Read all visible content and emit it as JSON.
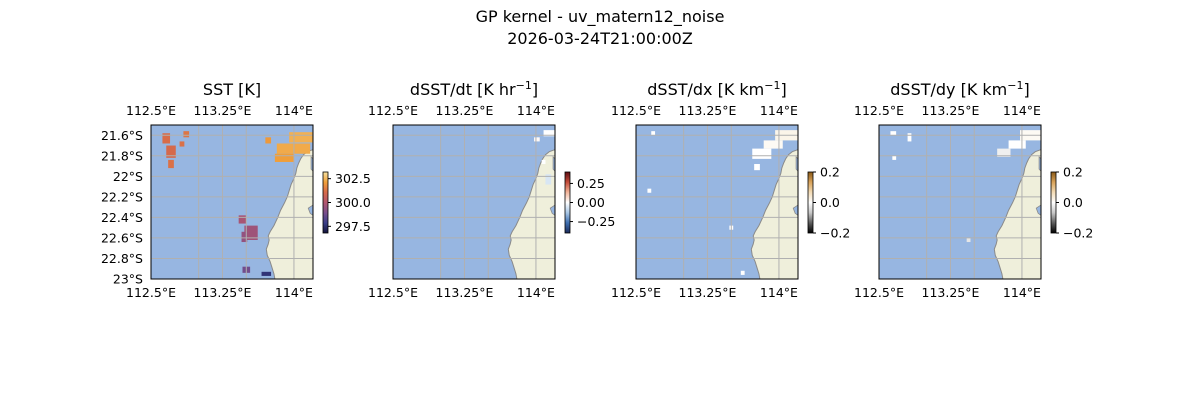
{
  "figure": {
    "title": "GP kernel - uv_matern12_noise",
    "timestamp": "2026-03-24T21:00:00Z"
  },
  "colors": {
    "ocean": "#97b6e1",
    "land": "#efefdb",
    "coast": "#8a8a8a",
    "grid": "#b0b0b0"
  },
  "map": {
    "lon_range": [
      112.5,
      114.2
    ],
    "lat_range": [
      -23.0,
      -21.5
    ],
    "lon_ticks": [
      {
        "value": 112.5,
        "label": "112.5°E"
      },
      {
        "value": 113.25,
        "label": "113.25°E"
      },
      {
        "value": 114.0,
        "label": "114°E"
      }
    ],
    "lat_ticks": [
      {
        "value": -21.6,
        "label": "21.6°S"
      },
      {
        "value": -21.8,
        "label": "21.8°S"
      },
      {
        "value": -22.0,
        "label": "22°S"
      },
      {
        "value": -22.2,
        "label": "22.2°S"
      },
      {
        "value": -22.4,
        "label": "22.4°S"
      },
      {
        "value": -22.6,
        "label": "22.6°S"
      },
      {
        "value": -22.8,
        "label": "22.8°S"
      },
      {
        "value": -23.0,
        "label": "23°S"
      }
    ],
    "coastline": [
      [
        114.2,
        -21.74
      ],
      [
        114.14,
        -21.76
      ],
      [
        114.1,
        -21.79
      ],
      [
        114.07,
        -21.83
      ],
      [
        114.05,
        -21.87
      ],
      [
        114.03,
        -21.92
      ],
      [
        114.02,
        -21.97
      ],
      [
        114.0,
        -22.02
      ],
      [
        113.97,
        -22.08
      ],
      [
        113.95,
        -22.14
      ],
      [
        113.93,
        -22.2
      ],
      [
        113.9,
        -22.26
      ],
      [
        113.86,
        -22.33
      ],
      [
        113.83,
        -22.4
      ],
      [
        113.79,
        -22.48
      ],
      [
        113.75,
        -22.54
      ],
      [
        113.73,
        -22.58
      ],
      [
        113.74,
        -22.62
      ],
      [
        113.73,
        -22.66
      ],
      [
        113.71,
        -22.71
      ],
      [
        113.72,
        -22.77
      ],
      [
        113.75,
        -22.83
      ],
      [
        113.77,
        -22.89
      ],
      [
        113.79,
        -22.95
      ],
      [
        113.8,
        -23.0
      ]
    ],
    "islands": [
      [
        [
          114.18,
          -21.81
        ],
        [
          114.2,
          -21.83
        ],
        [
          114.2,
          -21.95
        ],
        [
          114.18,
          -21.93
        ]
      ],
      [
        [
          114.2,
          -22.28
        ],
        [
          114.15,
          -22.31
        ],
        [
          114.17,
          -22.36
        ],
        [
          114.2,
          -22.38
        ]
      ]
    ]
  },
  "panels": [
    {
      "id": "sst",
      "title": "SST [K]",
      "title_main": "SST [K]",
      "title_sup": "",
      "show_lat_labels": true,
      "show_lon_labels": true,
      "colorbar": {
        "min": 296.8,
        "max": 303.2,
        "colors": [
          "#13143a",
          "#3b3f8a",
          "#7a4f8c",
          "#b3566e",
          "#d76a4a",
          "#f0a03a",
          "#f6e1a0"
        ],
        "ticks": [
          {
            "value": 297.5,
            "label": "297.5"
          },
          {
            "value": 300.0,
            "label": "300.0"
          },
          {
            "value": 302.5,
            "label": "302.5"
          }
        ]
      },
      "blocks": [
        {
          "lon": 112.62,
          "lat": -21.58,
          "w": 0.08,
          "h": 0.1,
          "value": 301.1
        },
        {
          "lon": 112.66,
          "lat": -21.7,
          "w": 0.1,
          "h": 0.12,
          "value": 301.0
        },
        {
          "lon": 112.68,
          "lat": -21.84,
          "w": 0.06,
          "h": 0.08,
          "value": 301.2
        },
        {
          "lon": 112.84,
          "lat": -21.56,
          "w": 0.06,
          "h": 0.06,
          "value": 301.3
        },
        {
          "lon": 112.8,
          "lat": -21.66,
          "w": 0.05,
          "h": 0.05,
          "value": 301.2
        },
        {
          "lon": 113.95,
          "lat": -21.57,
          "w": 0.25,
          "h": 0.1,
          "value": 302.4
        },
        {
          "lon": 113.82,
          "lat": -21.68,
          "w": 0.35,
          "h": 0.1,
          "value": 302.3
        },
        {
          "lon": 113.8,
          "lat": -21.78,
          "w": 0.2,
          "h": 0.08,
          "value": 302.1
        },
        {
          "lon": 113.7,
          "lat": -21.62,
          "w": 0.06,
          "h": 0.06,
          "value": 302.0
        },
        {
          "lon": 113.42,
          "lat": -22.38,
          "w": 0.08,
          "h": 0.08,
          "value": 299.8
        },
        {
          "lon": 113.48,
          "lat": -22.48,
          "w": 0.14,
          "h": 0.14,
          "value": 299.6
        },
        {
          "lon": 113.45,
          "lat": -22.54,
          "w": 0.06,
          "h": 0.1,
          "value": 299.4
        },
        {
          "lon": 113.46,
          "lat": -22.88,
          "w": 0.08,
          "h": 0.06,
          "value": 298.8
        },
        {
          "lon": 113.66,
          "lat": -22.93,
          "w": 0.1,
          "h": 0.04,
          "value": 297.6
        }
      ]
    },
    {
      "id": "dsst-dt",
      "title": "dSST/dt [K hr⁻¹]",
      "title_main": "dSST/dt [K hr",
      "title_sup": "−1",
      "title_end": "]",
      "show_lat_labels": false,
      "show_lon_labels": true,
      "colorbar": {
        "min": -0.4,
        "max": 0.4,
        "colors": [
          "#1b2a5a",
          "#3e6fb0",
          "#a9c7e6",
          "#ffffff",
          "#f2b59a",
          "#c44c3a",
          "#5e0d12"
        ],
        "ticks": [
          {
            "value": -0.25,
            "label": "−0.25"
          },
          {
            "value": 0.0,
            "label": "0.00"
          },
          {
            "value": 0.25,
            "label": "0.25"
          }
        ]
      },
      "blocks": [
        {
          "lon": 114.08,
          "lat": -21.55,
          "w": 0.12,
          "h": 0.06,
          "value": 0.0
        },
        {
          "lon": 113.98,
          "lat": -21.62,
          "w": 0.06,
          "h": 0.04,
          "value": 0.01
        },
        {
          "lon": 114.1,
          "lat": -21.98,
          "w": 0.06,
          "h": 0.1,
          "value": -0.06
        },
        {
          "lon": 114.06,
          "lat": -21.84,
          "w": 0.04,
          "h": 0.04,
          "value": 0.0
        }
      ]
    },
    {
      "id": "dsst-dx",
      "title": "dSST/dx [K km⁻¹]",
      "title_main": "dSST/dx [K km",
      "title_sup": "−1",
      "title_end": "]",
      "show_lat_labels": false,
      "show_lon_labels": true,
      "colorbar": {
        "min": -0.2,
        "max": 0.2,
        "colors": [
          "#000000",
          "#5e5e5e",
          "#c8c8c8",
          "#ffffff",
          "#f3dcb6",
          "#d9a35a",
          "#8a5a18"
        ],
        "ticks": [
          {
            "value": -0.2,
            "label": "−0.2"
          },
          {
            "value": 0.0,
            "label": "0.0"
          },
          {
            "value": 0.2,
            "label": "0.2"
          }
        ]
      },
      "blocks": [
        {
          "lon": 113.96,
          "lat": -21.55,
          "w": 0.24,
          "h": 0.1,
          "value": 0.02
        },
        {
          "lon": 113.84,
          "lat": -21.65,
          "w": 0.2,
          "h": 0.08,
          "value": 0.01
        },
        {
          "lon": 113.72,
          "lat": -21.73,
          "w": 0.2,
          "h": 0.1,
          "value": 0.0
        },
        {
          "lon": 113.74,
          "lat": -21.88,
          "w": 0.06,
          "h": 0.06,
          "value": 0.0
        },
        {
          "lon": 112.66,
          "lat": -21.56,
          "w": 0.04,
          "h": 0.04,
          "value": 0.0
        },
        {
          "lon": 112.62,
          "lat": -22.12,
          "w": 0.04,
          "h": 0.04,
          "value": 0.0
        },
        {
          "lon": 113.48,
          "lat": -22.48,
          "w": 0.04,
          "h": 0.04,
          "value": 0.0
        },
        {
          "lon": 113.6,
          "lat": -22.92,
          "w": 0.04,
          "h": 0.04,
          "value": 0.0
        }
      ]
    },
    {
      "id": "dsst-dy",
      "title": "dSST/dy [K km⁻¹]",
      "title_main": "dSST/dy [K km",
      "title_sup": "−1",
      "title_end": "]",
      "show_lat_labels": false,
      "show_lon_labels": true,
      "colorbar": {
        "min": -0.2,
        "max": 0.2,
        "colors": [
          "#000000",
          "#5e5e5e",
          "#c8c8c8",
          "#ffffff",
          "#f3dcb6",
          "#d9a35a",
          "#8a5a18"
        ],
        "ticks": [
          {
            "value": -0.2,
            "label": "−0.2"
          },
          {
            "value": 0.0,
            "label": "0.0"
          },
          {
            "value": 0.2,
            "label": "0.2"
          }
        ]
      },
      "blocks": [
        {
          "lon": 113.98,
          "lat": -21.55,
          "w": 0.22,
          "h": 0.1,
          "value": 0.01
        },
        {
          "lon": 113.86,
          "lat": -21.65,
          "w": 0.18,
          "h": 0.08,
          "value": 0.0
        },
        {
          "lon": 113.74,
          "lat": -21.73,
          "w": 0.14,
          "h": 0.08,
          "value": -0.02
        },
        {
          "lon": 112.62,
          "lat": -21.56,
          "w": 0.06,
          "h": 0.04,
          "value": 0.0
        },
        {
          "lon": 112.8,
          "lat": -21.58,
          "w": 0.04,
          "h": 0.08,
          "value": 0.0
        },
        {
          "lon": 112.64,
          "lat": -21.8,
          "w": 0.04,
          "h": 0.04,
          "value": 0.0
        },
        {
          "lon": 113.42,
          "lat": -22.6,
          "w": 0.04,
          "h": 0.04,
          "value": -0.03
        }
      ]
    }
  ]
}
